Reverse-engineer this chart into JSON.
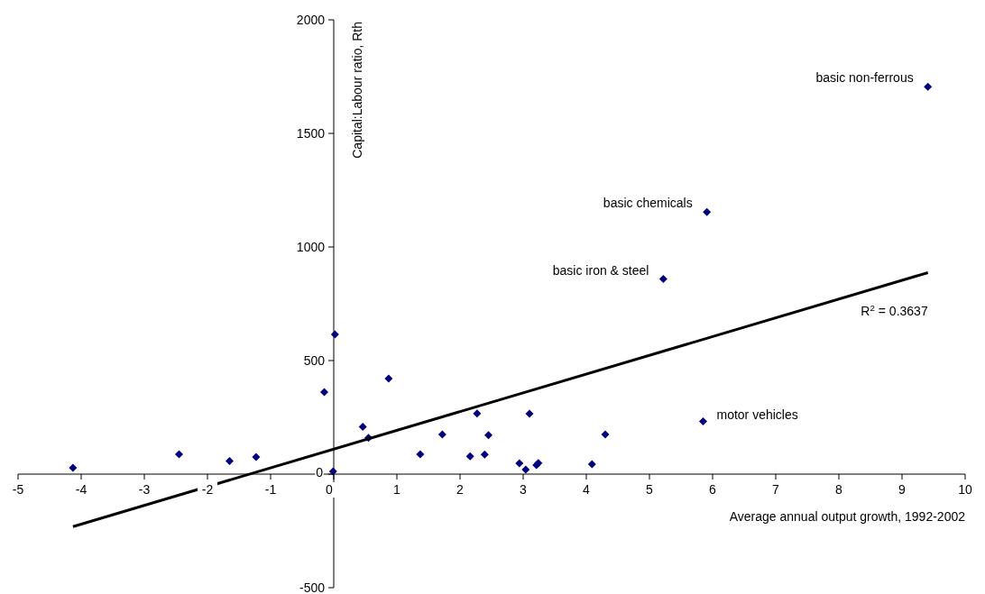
{
  "chart_data": {
    "type": "scatter",
    "xlabel": "Average annual output growth, 1992-2002",
    "ylabel": "Capital:Labour ratio, Rth",
    "xlim": [
      -5,
      10
    ],
    "xticks": [
      -5,
      -4,
      -3,
      -2,
      -1,
      0,
      1,
      2,
      3,
      4,
      5,
      6,
      7,
      8,
      9,
      10
    ],
    "ylim": [
      -500,
      2000
    ],
    "yticks": [
      -500,
      0,
      500,
      1000,
      1500,
      2000
    ],
    "grid": false,
    "series": [
      {
        "color": "#000080",
        "marker": "diamond",
        "x": [
          -4.13,
          -2.45,
          -1.65,
          -1.23,
          -0.15,
          0.02,
          -0.01,
          0.46,
          0.55,
          0.87,
          1.37,
          1.72,
          2.16,
          2.27,
          2.39,
          2.45,
          2.94,
          3.04,
          3.1,
          3.21,
          3.24,
          4.09,
          4.3,
          5.85,
          5.22,
          5.91,
          9.41
        ],
        "values": [
          28,
          87,
          58,
          75,
          361,
          615,
          12,
          208,
          160,
          421,
          87,
          175,
          78,
          267,
          86,
          172,
          48,
          20,
          266,
          40,
          49,
          44,
          175,
          232,
          859,
          1154,
          1705
        ]
      },
      {
        "type": "line",
        "color": "#000000",
        "marker": "none",
        "x": [
          -4.13,
          9.41
        ],
        "values": [
          -231,
          887
        ]
      }
    ],
    "annotations": [
      {
        "text": "basic non-ferrous",
        "x": 9.41,
        "y": 1705
      },
      {
        "text": "basic chemicals",
        "x": 5.91,
        "y": 1154
      },
      {
        "text": "basic iron & steel",
        "x": 5.22,
        "y": 859
      },
      {
        "text": "motor vehicles",
        "x": 5.85,
        "y": 232
      },
      {
        "text": "R$^{2}$ = 0.3637",
        "x": 9.41,
        "y": 887
      }
    ]
  }
}
